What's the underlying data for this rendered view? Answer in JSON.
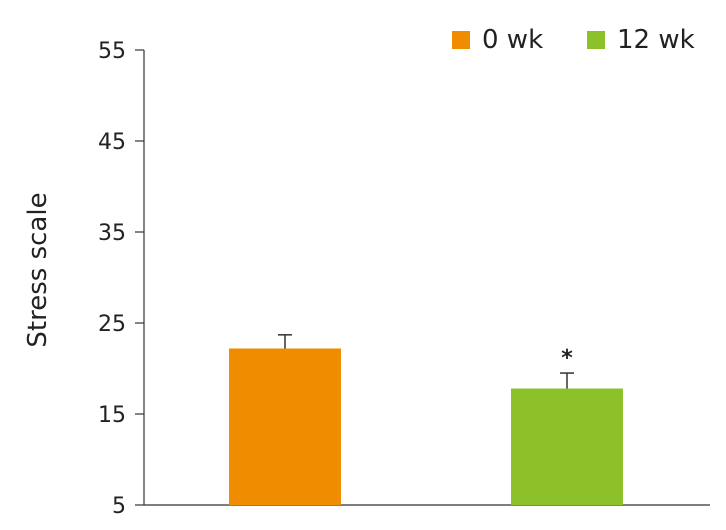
{
  "chart_data": {
    "type": "bar",
    "categories": [
      "0 wk",
      "12 wk"
    ],
    "values": [
      22.2,
      17.8
    ],
    "error": [
      1.5,
      1.7
    ],
    "colors": [
      "#F08C00",
      "#8DC12A"
    ],
    "ylabel": "Stress scale",
    "ylim": [
      5,
      55
    ],
    "yticks": [
      5,
      15,
      25,
      35,
      45,
      55
    ],
    "legend": [
      {
        "label": "0 wk",
        "color": "#F08C00"
      },
      {
        "label": "12 wk",
        "color": "#8DC12A"
      }
    ],
    "legend_position": "top-right",
    "annotations": [
      {
        "category": "12 wk",
        "text": "*"
      }
    ],
    "grid": false
  }
}
